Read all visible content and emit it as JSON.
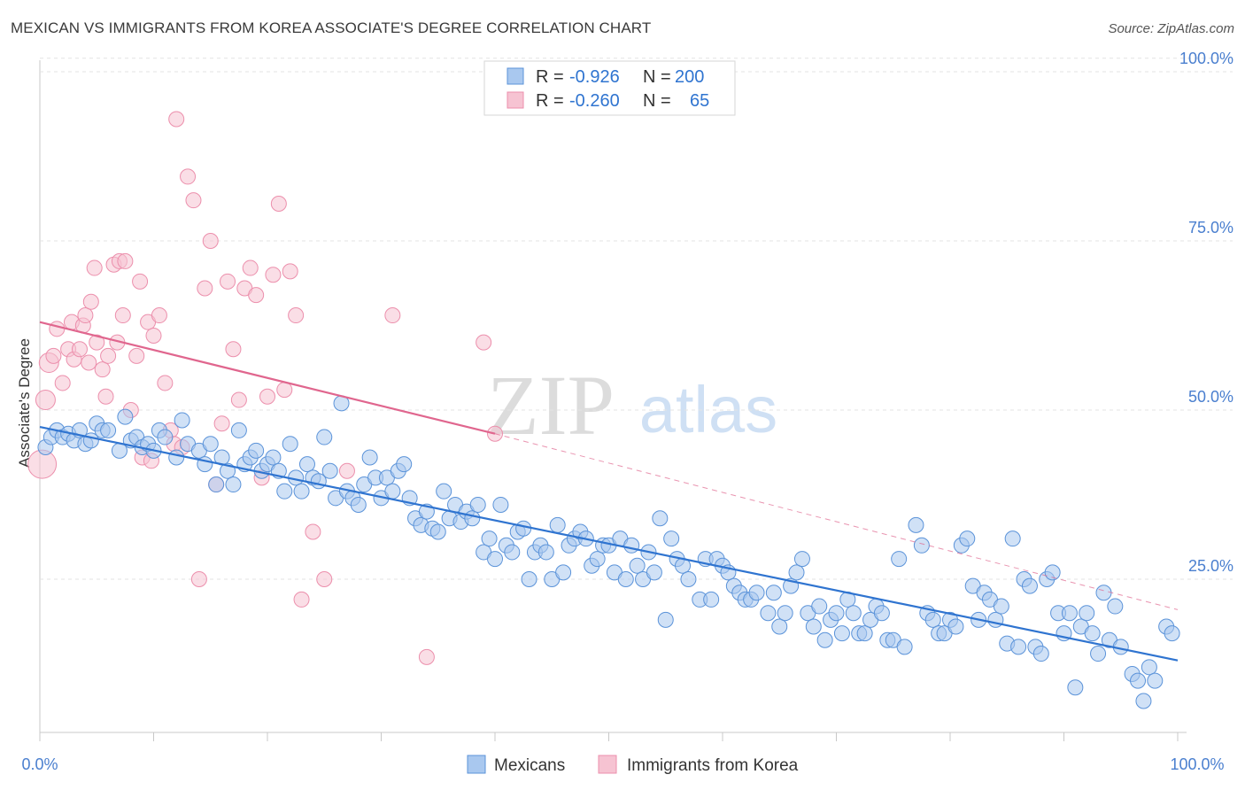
{
  "header": {
    "title": "MEXICAN VS IMMIGRANTS FROM KOREA ASSOCIATE'S DEGREE CORRELATION CHART",
    "source": "Source: ZipAtlas.com"
  },
  "legend_top": [
    {
      "r_label": "R =",
      "r_value": "-0.926",
      "n_label": "N =",
      "n_value": "200"
    },
    {
      "r_label": "R =",
      "r_value": "-0.260",
      "n_label": "N =",
      "n_value": "65"
    }
  ],
  "legend_bottom": [
    {
      "label": "Mexicans"
    },
    {
      "label": "Immigrants from Korea"
    }
  ],
  "watermark": {
    "zip": "ZIP",
    "atlas": "atlas"
  },
  "colors": {
    "blue": "#5b93d9",
    "blue_fill": "#a9c8ef",
    "blue_line": "#2f74d0",
    "pink": "#ec8fac",
    "pink_fill": "#f6c3d2",
    "pink_line": "#e0668e",
    "axis_text": "#4a7fcf"
  },
  "chart_data": {
    "type": "scatter",
    "title": "MEXICAN VS IMMIGRANTS FROM KOREA ASSOCIATE'S DEGREE CORRELATION CHART",
    "xlabel": "",
    "ylabel": "Associate's Degree",
    "xlim": [
      0,
      100
    ],
    "ylim": [
      0,
      105
    ],
    "x_tick_labels": [
      "0.0%",
      "100.0%"
    ],
    "y_ticks": [
      25,
      50,
      75,
      100
    ],
    "y_tick_labels": [
      "25.0%",
      "50.0%",
      "75.0%",
      "100.0%"
    ],
    "grid": true,
    "legend_position": "top-center",
    "series": [
      {
        "name": "Mexicans",
        "r": -0.926,
        "n": 200,
        "trend": {
          "x0": 0,
          "y0": 47.5,
          "x1": 100,
          "y1": 13
        },
        "points": [
          [
            0.5,
            44.5
          ],
          [
            1.0,
            46
          ],
          [
            1.5,
            47
          ],
          [
            2,
            46
          ],
          [
            2.5,
            46.5
          ],
          [
            3,
            45.5
          ],
          [
            3.5,
            47
          ],
          [
            4,
            45
          ],
          [
            4.5,
            45.5
          ],
          [
            5,
            48
          ],
          [
            5.5,
            47
          ],
          [
            6,
            47
          ],
          [
            7,
            44
          ],
          [
            7.5,
            49
          ],
          [
            8,
            45.5
          ],
          [
            8.5,
            46
          ],
          [
            9,
            44.5
          ],
          [
            9.5,
            45
          ],
          [
            10,
            44
          ],
          [
            10.5,
            47
          ],
          [
            11,
            46
          ],
          [
            12,
            43
          ],
          [
            12.5,
            48.5
          ],
          [
            13,
            45
          ],
          [
            14,
            44
          ],
          [
            14.5,
            42
          ],
          [
            15,
            45
          ],
          [
            15.5,
            39
          ],
          [
            16,
            43
          ],
          [
            16.5,
            41
          ],
          [
            17,
            39
          ],
          [
            17.5,
            47
          ],
          [
            18,
            42
          ],
          [
            18.5,
            43
          ],
          [
            19,
            44
          ],
          [
            19.5,
            41
          ],
          [
            20,
            42
          ],
          [
            20.5,
            43
          ],
          [
            21,
            41
          ],
          [
            21.5,
            38
          ],
          [
            22,
            45
          ],
          [
            22.5,
            40
          ],
          [
            23,
            38
          ],
          [
            23.5,
            42
          ],
          [
            24,
            40
          ],
          [
            24.5,
            39.5
          ],
          [
            25,
            46
          ],
          [
            25.5,
            41
          ],
          [
            26,
            37
          ],
          [
            26.5,
            51
          ],
          [
            27,
            38
          ],
          [
            27.5,
            37
          ],
          [
            28,
            36
          ],
          [
            28.5,
            39
          ],
          [
            29,
            43
          ],
          [
            29.5,
            40
          ],
          [
            30,
            37
          ],
          [
            30.5,
            40
          ],
          [
            31,
            38
          ],
          [
            31.5,
            41
          ],
          [
            32,
            42
          ],
          [
            32.5,
            37
          ],
          [
            33,
            34
          ],
          [
            33.5,
            33
          ],
          [
            34,
            35
          ],
          [
            34.5,
            32.5
          ],
          [
            35,
            32
          ],
          [
            35.5,
            38
          ],
          [
            36,
            34
          ],
          [
            36.5,
            36
          ],
          [
            37,
            33.5
          ],
          [
            37.5,
            35
          ],
          [
            38,
            34
          ],
          [
            38.5,
            36
          ],
          [
            39,
            29
          ],
          [
            39.5,
            31
          ],
          [
            40,
            28
          ],
          [
            40.5,
            36
          ],
          [
            41,
            30
          ],
          [
            41.5,
            29
          ],
          [
            42,
            32
          ],
          [
            42.5,
            32.5
          ],
          [
            43,
            25
          ],
          [
            43.5,
            29
          ],
          [
            44,
            30
          ],
          [
            44.5,
            29
          ],
          [
            45,
            25
          ],
          [
            45.5,
            33
          ],
          [
            46,
            26
          ],
          [
            46.5,
            30
          ],
          [
            47,
            31
          ],
          [
            47.5,
            32
          ],
          [
            48,
            31
          ],
          [
            48.5,
            27
          ],
          [
            49,
            28
          ],
          [
            49.5,
            30
          ],
          [
            50,
            30
          ],
          [
            50.5,
            26
          ],
          [
            51,
            31
          ],
          [
            51.5,
            25
          ],
          [
            52,
            30
          ],
          [
            52.5,
            27
          ],
          [
            53,
            25
          ],
          [
            53.5,
            29
          ],
          [
            54,
            26
          ],
          [
            54.5,
            34
          ],
          [
            55,
            19
          ],
          [
            55.5,
            31
          ],
          [
            56,
            28
          ],
          [
            56.5,
            27
          ],
          [
            57,
            25
          ],
          [
            58,
            22
          ],
          [
            58.5,
            28
          ],
          [
            59,
            22
          ],
          [
            59.5,
            28
          ],
          [
            60,
            27
          ],
          [
            60.5,
            26
          ],
          [
            61,
            24
          ],
          [
            61.5,
            23
          ],
          [
            62,
            22
          ],
          [
            62.5,
            22
          ],
          [
            63,
            23
          ],
          [
            64,
            20
          ],
          [
            64.5,
            23
          ],
          [
            65,
            18
          ],
          [
            65.5,
            20
          ],
          [
            66,
            24
          ],
          [
            66.5,
            26
          ],
          [
            67,
            28
          ],
          [
            67.5,
            20
          ],
          [
            68,
            18
          ],
          [
            68.5,
            21
          ],
          [
            69,
            16
          ],
          [
            69.5,
            19
          ],
          [
            70,
            20
          ],
          [
            70.5,
            17
          ],
          [
            71,
            22
          ],
          [
            71.5,
            20
          ],
          [
            72,
            17
          ],
          [
            72.5,
            17
          ],
          [
            73,
            19
          ],
          [
            73.5,
            21
          ],
          [
            74,
            20
          ],
          [
            74.5,
            16
          ],
          [
            75,
            16
          ],
          [
            75.5,
            28
          ],
          [
            76,
            15
          ],
          [
            77,
            33
          ],
          [
            77.5,
            30
          ],
          [
            78,
            20
          ],
          [
            78.5,
            19
          ],
          [
            79,
            17
          ],
          [
            79.5,
            17
          ],
          [
            80,
            19
          ],
          [
            80.5,
            18
          ],
          [
            81,
            30
          ],
          [
            81.5,
            31
          ],
          [
            82,
            24
          ],
          [
            82.5,
            19
          ],
          [
            83,
            23
          ],
          [
            83.5,
            22
          ],
          [
            84,
            19
          ],
          [
            84.5,
            21
          ],
          [
            85,
            15.5
          ],
          [
            85.5,
            31
          ],
          [
            86,
            15
          ],
          [
            86.5,
            25
          ],
          [
            87,
            24
          ],
          [
            87.5,
            15
          ],
          [
            88,
            14
          ],
          [
            88.5,
            25
          ],
          [
            89,
            26
          ],
          [
            89.5,
            20
          ],
          [
            90,
            17
          ],
          [
            90.5,
            20
          ],
          [
            91,
            9
          ],
          [
            91.5,
            18
          ],
          [
            92,
            20
          ],
          [
            92.5,
            17
          ],
          [
            93,
            14
          ],
          [
            93.5,
            23
          ],
          [
            94,
            16
          ],
          [
            94.5,
            21
          ],
          [
            95,
            15
          ],
          [
            96,
            11
          ],
          [
            96.5,
            10
          ],
          [
            97,
            7
          ],
          [
            97.5,
            12
          ],
          [
            98,
            10
          ],
          [
            99,
            18
          ],
          [
            99.5,
            17
          ]
        ]
      },
      {
        "name": "Immigrants from Korea",
        "r": -0.26,
        "n": 65,
        "trend_solid": {
          "x0": 0,
          "y0": 63,
          "x1": 40,
          "y1": 46.5
        },
        "trend_dashed": {
          "x0": 40,
          "y0": 46.5,
          "x1": 100,
          "y1": 20.5
        },
        "points": [
          [
            0.2,
            42
          ],
          [
            0.5,
            51.5
          ],
          [
            0.8,
            57
          ],
          [
            1.2,
            58
          ],
          [
            1.5,
            62
          ],
          [
            2,
            54
          ],
          [
            2.5,
            59
          ],
          [
            2.8,
            63
          ],
          [
            3,
            57.5
          ],
          [
            3.5,
            59
          ],
          [
            3.8,
            62.5
          ],
          [
            4,
            64
          ],
          [
            4.3,
            57
          ],
          [
            4.5,
            66
          ],
          [
            4.8,
            71
          ],
          [
            5,
            60
          ],
          [
            5.5,
            56
          ],
          [
            5.8,
            52
          ],
          [
            6,
            58
          ],
          [
            6.5,
            71.5
          ],
          [
            6.8,
            60
          ],
          [
            7,
            72
          ],
          [
            7.3,
            64
          ],
          [
            7.5,
            72
          ],
          [
            8,
            50
          ],
          [
            8.5,
            58
          ],
          [
            8.8,
            69
          ],
          [
            9,
            43
          ],
          [
            9.5,
            63
          ],
          [
            9.8,
            42.5
          ],
          [
            10,
            61
          ],
          [
            10.5,
            64
          ],
          [
            11,
            54
          ],
          [
            11.5,
            47
          ],
          [
            11.8,
            45
          ],
          [
            12,
            93
          ],
          [
            12.5,
            44.5
          ],
          [
            13,
            84.5
          ],
          [
            13.5,
            81
          ],
          [
            14,
            25
          ],
          [
            14.5,
            68
          ],
          [
            15,
            75
          ],
          [
            15.5,
            39
          ],
          [
            16,
            48
          ],
          [
            16.5,
            69
          ],
          [
            17,
            59
          ],
          [
            17.5,
            51.5
          ],
          [
            18,
            68
          ],
          [
            18.5,
            71
          ],
          [
            19,
            67
          ],
          [
            19.5,
            40
          ],
          [
            20,
            52
          ],
          [
            20.5,
            70
          ],
          [
            21,
            80.5
          ],
          [
            21.5,
            53
          ],
          [
            22,
            70.5
          ],
          [
            22.5,
            64
          ],
          [
            23,
            22
          ],
          [
            24,
            32
          ],
          [
            25,
            25
          ],
          [
            27,
            41
          ],
          [
            31,
            64
          ],
          [
            34,
            13.5
          ],
          [
            39,
            60
          ],
          [
            40,
            46.5
          ]
        ]
      }
    ]
  }
}
